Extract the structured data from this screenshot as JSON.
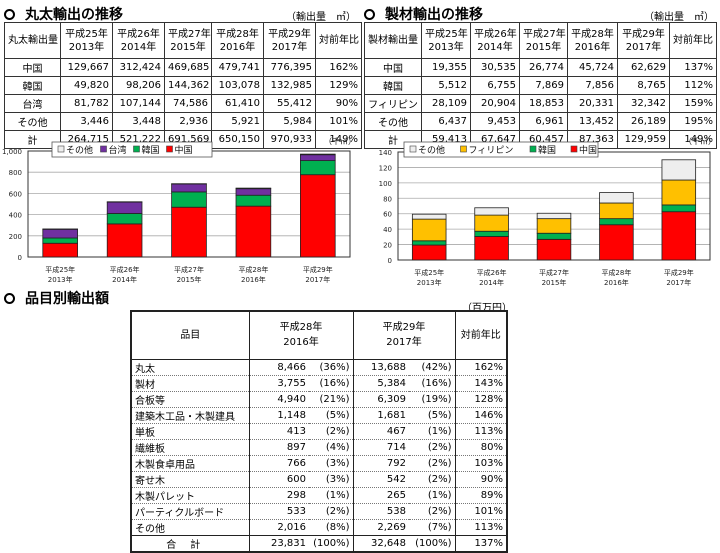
{
  "log_section": {
    "title": "丸太輸出の推移",
    "unit": "（輸出量　㎥）",
    "table": {
      "corner": "丸太輸出量",
      "columns": [
        {
          "line1": "平成25年",
          "line2": "2013年"
        },
        {
          "line1": "平成26年",
          "line2": "2014年"
        },
        {
          "line1": "平成27年",
          "line2": "2015年"
        },
        {
          "line1": "平成28年",
          "line2": "2016年"
        },
        {
          "line1": "平成29年",
          "line2": "2017年"
        }
      ],
      "ratio_header": "対前年比",
      "rows": [
        {
          "label": "中国",
          "values": [
            "129,667",
            "312,424",
            "469,685",
            "479,741",
            "776,395"
          ],
          "ratio": "162%"
        },
        {
          "label": "韓国",
          "values": [
            "49,820",
            "98,206",
            "144,362",
            "103,078",
            "132,985"
          ],
          "ratio": "129%"
        },
        {
          "label": "台湾",
          "values": [
            "81,782",
            "107,144",
            "74,586",
            "61,410",
            "55,412"
          ],
          "ratio": "90%"
        },
        {
          "label": "その他",
          "values": [
            "3,446",
            "3,448",
            "2,936",
            "5,921",
            "5,984"
          ],
          "ratio": "101%"
        },
        {
          "label": "計",
          "values": [
            "264,715",
            "521,222",
            "691,569",
            "650,150",
            "970,933"
          ],
          "ratio": "149%"
        }
      ]
    }
  },
  "lumber_section": {
    "title": "製材輸出の推移",
    "unit": "（輸出量　㎥）",
    "table": {
      "corner": "製材輸出量",
      "columns": [
        {
          "line1": "平成25年",
          "line2": "2013年"
        },
        {
          "line1": "平成26年",
          "line2": "2014年"
        },
        {
          "line1": "平成27年",
          "line2": "2015年"
        },
        {
          "line1": "平成28年",
          "line2": "2016年"
        },
        {
          "line1": "平成29年",
          "line2": "2017年"
        }
      ],
      "ratio_header": "対前年比",
      "rows": [
        {
          "label": "中国",
          "values": [
            "19,355",
            "30,535",
            "26,774",
            "45,724",
            "62,629"
          ],
          "ratio": "137%"
        },
        {
          "label": "韓国",
          "values": [
            "5,512",
            "6,755",
            "7,869",
            "7,856",
            "8,765"
          ],
          "ratio": "112%"
        },
        {
          "label": "フィリピン",
          "values": [
            "28,109",
            "20,904",
            "18,853",
            "20,331",
            "32,342"
          ],
          "ratio": "159%"
        },
        {
          "label": "その他",
          "values": [
            "6,437",
            "9,453",
            "6,961",
            "13,452",
            "26,189"
          ],
          "ratio": "195%"
        },
        {
          "label": "計",
          "values": [
            "59,413",
            "67,647",
            "60,457",
            "87,363",
            "129,959"
          ],
          "ratio": "149%"
        }
      ]
    }
  },
  "product_section": {
    "title": "品目別輸出額",
    "unit": "（百万円）",
    "table": {
      "item_header": "品目",
      "col_2016": {
        "line1": "平成28年",
        "line2": "2016年"
      },
      "col_2017": {
        "line1": "平成29年",
        "line2": "2017年"
      },
      "ratio_header": "対前年比",
      "rows": [
        {
          "item": "丸太",
          "v2016": "8,466",
          "p2016": "(36%)",
          "v2017": "13,688",
          "p2017": "(42%)",
          "ratio": "162%"
        },
        {
          "item": "製材",
          "v2016": "3,755",
          "p2016": "(16%)",
          "v2017": "5,384",
          "p2017": "(16%)",
          "ratio": "143%"
        },
        {
          "item": "合板等",
          "v2016": "4,940",
          "p2016": "(21%)",
          "v2017": "6,309",
          "p2017": "(19%)",
          "ratio": "128%"
        },
        {
          "item": "建築木工品・木製建具",
          "v2016": "1,148",
          "p2016": "(5%)",
          "v2017": "1,681",
          "p2017": "(5%)",
          "ratio": "146%"
        },
        {
          "item": "単板",
          "v2016": "413",
          "p2016": "(2%)",
          "v2017": "467",
          "p2017": "(1%)",
          "ratio": "113%"
        },
        {
          "item": "繊維板",
          "v2016": "897",
          "p2016": "(4%)",
          "v2017": "714",
          "p2017": "(2%)",
          "ratio": "80%"
        },
        {
          "item": "木製食卓用品",
          "v2016": "766",
          "p2016": "(3%)",
          "v2017": "792",
          "p2017": "(2%)",
          "ratio": "103%"
        },
        {
          "item": "寄せ木",
          "v2016": "600",
          "p2016": "(3%)",
          "v2017": "542",
          "p2017": "(2%)",
          "ratio": "90%"
        },
        {
          "item": "木製パレット",
          "v2016": "298",
          "p2016": "(1%)",
          "v2017": "265",
          "p2017": "(1%)",
          "ratio": "89%"
        },
        {
          "item": "パーティクルボード",
          "v2016": "533",
          "p2016": "(2%)",
          "v2017": "538",
          "p2017": "(2%)",
          "ratio": "101%"
        },
        {
          "item": "その他",
          "v2016": "2,016",
          "p2016": "(8%)",
          "v2017": "2,269",
          "p2017": "(7%)",
          "ratio": "113%"
        }
      ],
      "total": {
        "item": "合計",
        "v2016": "23,831",
        "p2016": "(100%)",
        "v2017": "32,648",
        "p2017": "(100%)",
        "ratio": "137%"
      }
    }
  },
  "chart_data": [
    {
      "type": "bar",
      "stacked": true,
      "title": "丸太輸出の推移",
      "unit_label": "（千㎥）",
      "categories": [
        "平成25年\n2013年",
        "平成26年\n2014年",
        "平成27年\n2015年",
        "平成28年\n2016年",
        "平成29年\n2017年"
      ],
      "category_line1": [
        "平成25年",
        "平成26年",
        "平成27年",
        "平成28年",
        "平成29年"
      ],
      "category_line2": [
        "2013年",
        "2014年",
        "2015年",
        "2016年",
        "2017年"
      ],
      "series": [
        {
          "name": "中国",
          "color": "#ff0000",
          "values": [
            129.7,
            312.4,
            469.7,
            479.7,
            776.4
          ]
        },
        {
          "name": "韓国",
          "color": "#00b050",
          "values": [
            49.8,
            98.2,
            144.4,
            103.1,
            133.0
          ]
        },
        {
          "name": "台湾",
          "color": "#7030a0",
          "values": [
            81.8,
            107.1,
            74.6,
            61.4,
            55.4
          ]
        },
        {
          "name": "その他",
          "color": "#eeeeee",
          "values": [
            3.4,
            3.4,
            2.9,
            5.9,
            6.0
          ]
        }
      ],
      "legend": [
        "その他",
        "台湾",
        "韓国",
        "中国"
      ],
      "legend_position": "top-inside",
      "ylim": [
        0,
        1000
      ],
      "yticks": [
        "0",
        "200",
        "400",
        "600",
        "800",
        "1,000"
      ],
      "grid": true,
      "xlabel": "",
      "ylabel": ""
    },
    {
      "type": "bar",
      "stacked": true,
      "title": "製材輸出の推移",
      "unit_label": "（千㎥）",
      "categories": [
        "平成25年\n2013年",
        "平成26年\n2014年",
        "平成27年\n2015年",
        "平成28年\n2016年",
        "平成29年\n2017年"
      ],
      "category_line1": [
        "平成25年",
        "平成26年",
        "平成27年",
        "平成28年",
        "平成29年"
      ],
      "category_line2": [
        "2013年",
        "2014年",
        "2015年",
        "2016年",
        "2017年"
      ],
      "series": [
        {
          "name": "中国",
          "color": "#ff0000",
          "values": [
            19.4,
            30.5,
            26.8,
            45.7,
            62.6
          ]
        },
        {
          "name": "韓国",
          "color": "#00b050",
          "values": [
            5.5,
            6.8,
            7.9,
            7.9,
            8.8
          ]
        },
        {
          "name": "フィリピン",
          "color": "#ffc000",
          "values": [
            28.1,
            20.9,
            18.9,
            20.3,
            32.3
          ]
        },
        {
          "name": "その他",
          "color": "#eeeeee",
          "values": [
            6.4,
            9.5,
            7.0,
            13.5,
            26.2
          ]
        }
      ],
      "legend": [
        "その他",
        "フィリピン",
        "韓国",
        "中国"
      ],
      "legend_position": "top-inside",
      "ylim": [
        0,
        140
      ],
      "yticks": [
        "0",
        "20",
        "40",
        "60",
        "80",
        "100",
        "120",
        "140"
      ],
      "grid": true,
      "xlabel": "",
      "ylabel": ""
    }
  ]
}
